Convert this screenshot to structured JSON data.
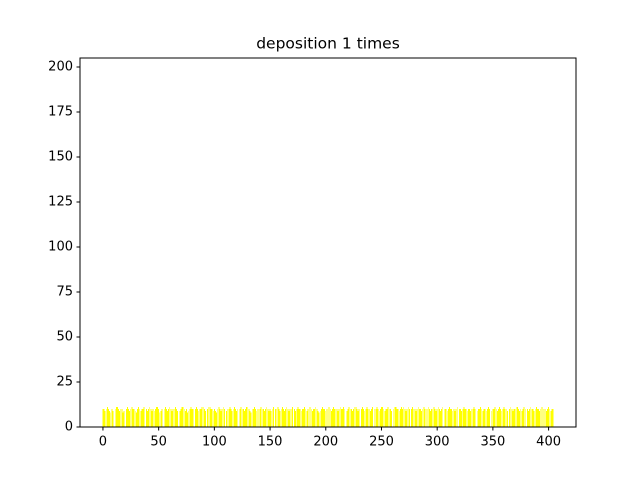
{
  "chart_data": {
    "type": "bar",
    "title": "deposition 1 times",
    "color": "#ffff00",
    "x": [
      0,
      1,
      2,
      3,
      4,
      5,
      6,
      7,
      8,
      9,
      10,
      11,
      12,
      13,
      14,
      15,
      16,
      17,
      18,
      19,
      20,
      21,
      22,
      23,
      24,
      25,
      26,
      27,
      28,
      29,
      30,
      31,
      32,
      33,
      34,
      35,
      36,
      37,
      38,
      39,
      40,
      41,
      42,
      43,
      44,
      45,
      46,
      47,
      48,
      49,
      50,
      51,
      52,
      53,
      54,
      55,
      56,
      57,
      58,
      59,
      60,
      61,
      62,
      63,
      64,
      65,
      66,
      67,
      68,
      69,
      70,
      71,
      72,
      73,
      74,
      75,
      76,
      77,
      78,
      79,
      80,
      81,
      82,
      83,
      84,
      85,
      86,
      87,
      88,
      89,
      90,
      91,
      92,
      93,
      94,
      95,
      96,
      97,
      98,
      99,
      100,
      101,
      102,
      103,
      104,
      105,
      106,
      107,
      108,
      109,
      110,
      111,
      112,
      113,
      114,
      115,
      116,
      117,
      118,
      119,
      120,
      121,
      122,
      123,
      124,
      125,
      126,
      127,
      128,
      129,
      130,
      131,
      132,
      133,
      134,
      135,
      136,
      137,
      138,
      139,
      140,
      141,
      142,
      143,
      144,
      145,
      146,
      147,
      148,
      149,
      150,
      151,
      152,
      153,
      154,
      155,
      156,
      157,
      158,
      159,
      160,
      161,
      162,
      163,
      164,
      165,
      166,
      167,
      168,
      169,
      170,
      171,
      172,
      173,
      174,
      175,
      176,
      177,
      178,
      179,
      180,
      181,
      182,
      183,
      184,
      185,
      186,
      187,
      188,
      189,
      190,
      191,
      192,
      193,
      194,
      195,
      196,
      197,
      198,
      199,
      200,
      201,
      202,
      203,
      204,
      205,
      206,
      207,
      208,
      209,
      210,
      211,
      212,
      213,
      214,
      215,
      216,
      217,
      218,
      219,
      220,
      221,
      222,
      223,
      224,
      225,
      226,
      227,
      228,
      229,
      230,
      231,
      232,
      233,
      234,
      235,
      236,
      237,
      238,
      239,
      240,
      241,
      242,
      243,
      244,
      245,
      246,
      247,
      248,
      249,
      250,
      251,
      252,
      253,
      254,
      255,
      256,
      257,
      258,
      259,
      260,
      261,
      262,
      263,
      264,
      265,
      266,
      267,
      268,
      269,
      270,
      271,
      272,
      273,
      274,
      275,
      276,
      277,
      278,
      279,
      280,
      281,
      282,
      283,
      284,
      285,
      286,
      287,
      288,
      289,
      290,
      291,
      292,
      293,
      294,
      295,
      296,
      297,
      298,
      299,
      300,
      301,
      302,
      303,
      304,
      305,
      306,
      307,
      308,
      309,
      310,
      311,
      312,
      313,
      314,
      315,
      316,
      317,
      318,
      319,
      320,
      321,
      322,
      323,
      324,
      325,
      326,
      327,
      328,
      329,
      330,
      331,
      332,
      333,
      334,
      335,
      336,
      337,
      338,
      339,
      340,
      341,
      342,
      343,
      344,
      345,
      346,
      347,
      348,
      349,
      350,
      351,
      352,
      353,
      354,
      355,
      356,
      357,
      358,
      359,
      360,
      361,
      362,
      363,
      364,
      365,
      366,
      367,
      368,
      369,
      370,
      371,
      372,
      373,
      374,
      375,
      376,
      377,
      378,
      379,
      380,
      381,
      382,
      383,
      384,
      385,
      386,
      387,
      388,
      389,
      390,
      391,
      392,
      393,
      394,
      395,
      396,
      397,
      398,
      399,
      400,
      401,
      402,
      403,
      404
    ],
    "values": [
      10,
      10,
      9,
      10,
      11,
      10,
      9,
      8,
      10,
      9,
      0,
      10,
      11,
      11,
      10,
      9,
      10,
      10,
      8,
      9,
      0,
      10,
      11,
      10,
      9,
      10,
      11,
      10,
      10,
      9,
      8,
      10,
      11,
      10,
      9,
      10,
      10,
      11,
      0,
      10,
      9,
      10,
      11,
      10,
      9,
      10,
      9,
      10,
      11,
      11,
      10,
      8,
      9,
      10,
      0,
      10,
      11,
      10,
      9,
      10,
      11,
      10,
      9,
      10,
      10,
      11,
      10,
      9,
      0,
      9,
      10,
      11,
      11,
      10,
      9,
      10,
      8,
      9,
      10,
      11,
      10,
      10,
      0,
      10,
      11,
      10,
      9,
      10,
      10,
      11,
      11,
      10,
      9,
      0,
      10,
      11,
      11,
      10,
      10,
      9,
      10,
      9,
      8,
      10,
      11,
      10,
      9,
      10,
      11,
      10,
      0,
      9,
      10,
      10,
      11,
      10,
      9,
      10,
      11,
      10,
      9,
      10,
      0,
      10,
      11,
      10,
      10,
      9,
      10,
      11,
      11,
      10,
      9,
      8,
      10,
      10,
      11,
      10,
      9,
      10,
      0,
      10,
      11,
      10,
      10,
      9,
      10,
      11,
      10,
      9,
      10,
      9,
      10,
      11,
      0,
      10,
      10,
      11,
      10,
      9,
      10,
      11,
      10,
      9,
      10,
      11,
      10,
      9,
      10,
      10,
      11,
      0,
      10,
      9,
      10,
      11,
      10,
      10,
      9,
      10,
      10,
      11,
      10,
      9,
      10,
      0,
      11,
      10,
      9,
      10,
      10,
      11,
      10,
      9,
      8,
      9,
      10,
      11,
      10,
      10,
      9,
      10,
      0,
      11,
      10,
      9,
      10,
      11,
      10,
      10,
      10,
      9,
      10,
      11,
      10,
      10,
      11,
      10,
      0,
      9,
      10,
      11,
      10,
      10,
      9,
      10,
      11,
      11,
      10,
      9,
      10,
      0,
      10,
      11,
      10,
      9,
      10,
      11,
      10,
      10,
      9,
      10,
      11,
      0,
      10,
      10,
      11,
      10,
      9,
      10,
      11,
      11,
      10,
      9,
      10,
      10,
      11,
      10,
      10,
      9,
      0,
      10,
      11,
      11,
      10,
      10,
      9,
      10,
      11,
      10,
      11,
      10,
      9,
      10,
      11,
      10,
      0,
      10,
      11,
      10,
      10,
      9,
      10,
      11,
      10,
      10,
      9,
      10,
      11,
      10,
      0,
      10,
      11,
      10,
      9,
      10,
      10,
      11,
      10,
      9,
      10,
      11,
      10,
      9,
      10,
      11,
      0,
      10,
      10,
      9,
      10,
      11,
      10,
      10,
      9,
      10,
      9,
      10,
      11,
      0,
      10,
      10,
      9,
      10,
      11,
      10,
      10,
      9,
      10,
      10,
      9,
      10,
      10,
      11,
      10,
      0,
      9,
      10,
      10,
      11,
      10,
      9,
      10,
      10,
      9,
      10,
      11,
      10,
      0,
      9,
      10,
      10,
      11,
      10,
      9,
      10,
      11,
      10,
      9,
      10,
      11,
      10,
      10,
      9,
      0,
      10,
      11,
      10,
      9,
      10,
      10,
      11,
      11,
      10,
      9,
      10,
      9,
      10,
      11,
      10,
      0,
      10,
      9,
      10,
      11,
      10,
      10,
      9,
      10,
      11,
      10,
      10,
      9,
      10,
      11,
      0,
      10,
      10,
      9,
      10,
      11,
      10,
      9,
      10,
      10
    ],
    "xlim": [
      -20.6,
      424.6
    ],
    "xticks": [
      0,
      50,
      100,
      150,
      200,
      250,
      300,
      350,
      400
    ],
    "ylim": [
      0,
      205
    ],
    "yticks": [
      0,
      25,
      50,
      75,
      100,
      125,
      150,
      175,
      200
    ],
    "grid": false
  }
}
